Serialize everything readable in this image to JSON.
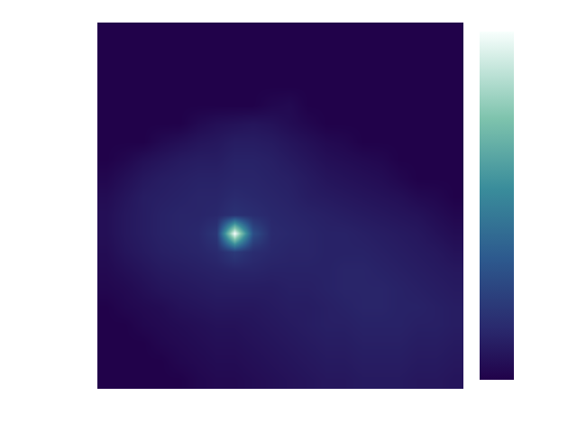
{
  "chart_data": {
    "type": "heatmap",
    "tick_labels": false,
    "xlim": [
      -0.5,
      19.5
    ],
    "ylim": [
      19.5,
      -0.5
    ],
    "zlim": [
      0,
      1
    ],
    "cells": [
      [
        0,
        0,
        0,
        0,
        0,
        0,
        0,
        0,
        0,
        0,
        0,
        0,
        0,
        0,
        0,
        0,
        0,
        0,
        0,
        0
      ],
      [
        0,
        0,
        0,
        0,
        0,
        0,
        0,
        0,
        0,
        0,
        0,
        0,
        0,
        0,
        0,
        0,
        0,
        0,
        0,
        0
      ],
      [
        0,
        0,
        0,
        0,
        0,
        0,
        0,
        0,
        0,
        0,
        0,
        0,
        0,
        0,
        0,
        0,
        0,
        0,
        0,
        0
      ],
      [
        0,
        0,
        0,
        0,
        0,
        0,
        0,
        0,
        0,
        0,
        0,
        0,
        0,
        0,
        0,
        0,
        0,
        0,
        0,
        0
      ],
      [
        0,
        0,
        0,
        0,
        0,
        0,
        0,
        0,
        0,
        0.02,
        0.03,
        0,
        0,
        0,
        0,
        0,
        0,
        0,
        0,
        0
      ],
      [
        0,
        0,
        0,
        0,
        0,
        0.03,
        0.05,
        0.06,
        0.07,
        0.06,
        0.04,
        0.02,
        0,
        0,
        0,
        0,
        0,
        0,
        0,
        0
      ],
      [
        0,
        0,
        0,
        0.03,
        0.05,
        0.07,
        0.08,
        0.1,
        0.1,
        0.09,
        0.07,
        0.05,
        0.03,
        0.02,
        0,
        0,
        0,
        0,
        0,
        0
      ],
      [
        0,
        0.02,
        0.05,
        0.07,
        0.09,
        0.1,
        0.1,
        0.12,
        0.12,
        0.11,
        0.09,
        0.07,
        0.05,
        0.04,
        0.03,
        0.02,
        0,
        0,
        0,
        0
      ],
      [
        0.02,
        0.05,
        0.08,
        0.1,
        0.11,
        0.12,
        0.12,
        0.13,
        0.13,
        0.12,
        0.11,
        0.09,
        0.07,
        0.06,
        0.05,
        0.04,
        0.02,
        0,
        0,
        0
      ],
      [
        0.04,
        0.07,
        0.1,
        0.11,
        0.12,
        0.13,
        0.13,
        0.15,
        0.14,
        0.13,
        0.12,
        0.1,
        0.09,
        0.08,
        0.07,
        0.06,
        0.05,
        0.03,
        0.02,
        0
      ],
      [
        0.05,
        0.08,
        0.1,
        0.12,
        0.13,
        0.13,
        0.14,
        0.18,
        0.16,
        0.14,
        0.13,
        0.12,
        0.11,
        0.1,
        0.09,
        0.08,
        0.07,
        0.06,
        0.04,
        0.02
      ],
      [
        0.05,
        0.08,
        0.1,
        0.12,
        0.13,
        0.14,
        0.2,
        1.0,
        0.3,
        0.15,
        0.14,
        0.13,
        0.12,
        0.12,
        0.11,
        0.1,
        0.09,
        0.08,
        0.06,
        0.04
      ],
      [
        0.04,
        0.07,
        0.09,
        0.11,
        0.12,
        0.13,
        0.15,
        0.22,
        0.16,
        0.14,
        0.13,
        0.13,
        0.12,
        0.12,
        0.12,
        0.11,
        0.1,
        0.09,
        0.08,
        0.06
      ],
      [
        0.03,
        0.05,
        0.07,
        0.09,
        0.1,
        0.11,
        0.12,
        0.13,
        0.13,
        0.12,
        0.12,
        0.12,
        0.12,
        0.13,
        0.13,
        0.12,
        0.11,
        0.1,
        0.09,
        0.08
      ],
      [
        0.02,
        0.03,
        0.05,
        0.07,
        0.08,
        0.09,
        0.1,
        0.1,
        0.1,
        0.1,
        0.11,
        0.11,
        0.12,
        0.13,
        0.13,
        0.13,
        0.12,
        0.11,
        0.1,
        0.09
      ],
      [
        0,
        0.02,
        0.03,
        0.04,
        0.06,
        0.07,
        0.08,
        0.08,
        0.08,
        0.09,
        0.1,
        0.1,
        0.11,
        0.12,
        0.13,
        0.13,
        0.12,
        0.12,
        0.11,
        0.1
      ],
      [
        0,
        0,
        0.02,
        0.03,
        0.04,
        0.05,
        0.06,
        0.06,
        0.07,
        0.08,
        0.09,
        0.1,
        0.11,
        0.11,
        0.12,
        0.12,
        0.12,
        0.11,
        0.11,
        0.1
      ],
      [
        0,
        0,
        0,
        0.02,
        0.03,
        0.04,
        0.05,
        0.05,
        0.06,
        0.07,
        0.08,
        0.09,
        0.1,
        0.1,
        0.11,
        0.11,
        0.11,
        0.1,
        0.1,
        0.09
      ],
      [
        0,
        0,
        0,
        0,
        0.02,
        0.03,
        0.04,
        0.04,
        0.05,
        0.06,
        0.07,
        0.08,
        0.09,
        0.09,
        0.1,
        0.1,
        0.1,
        0.09,
        0.09,
        0.08
      ],
      [
        0,
        0,
        0,
        0,
        0,
        0.02,
        0.03,
        0.03,
        0.04,
        0.05,
        0.06,
        0.07,
        0.08,
        0.08,
        0.09,
        0.09,
        0.09,
        0.08,
        0.08,
        0.07
      ]
    ]
  }
}
